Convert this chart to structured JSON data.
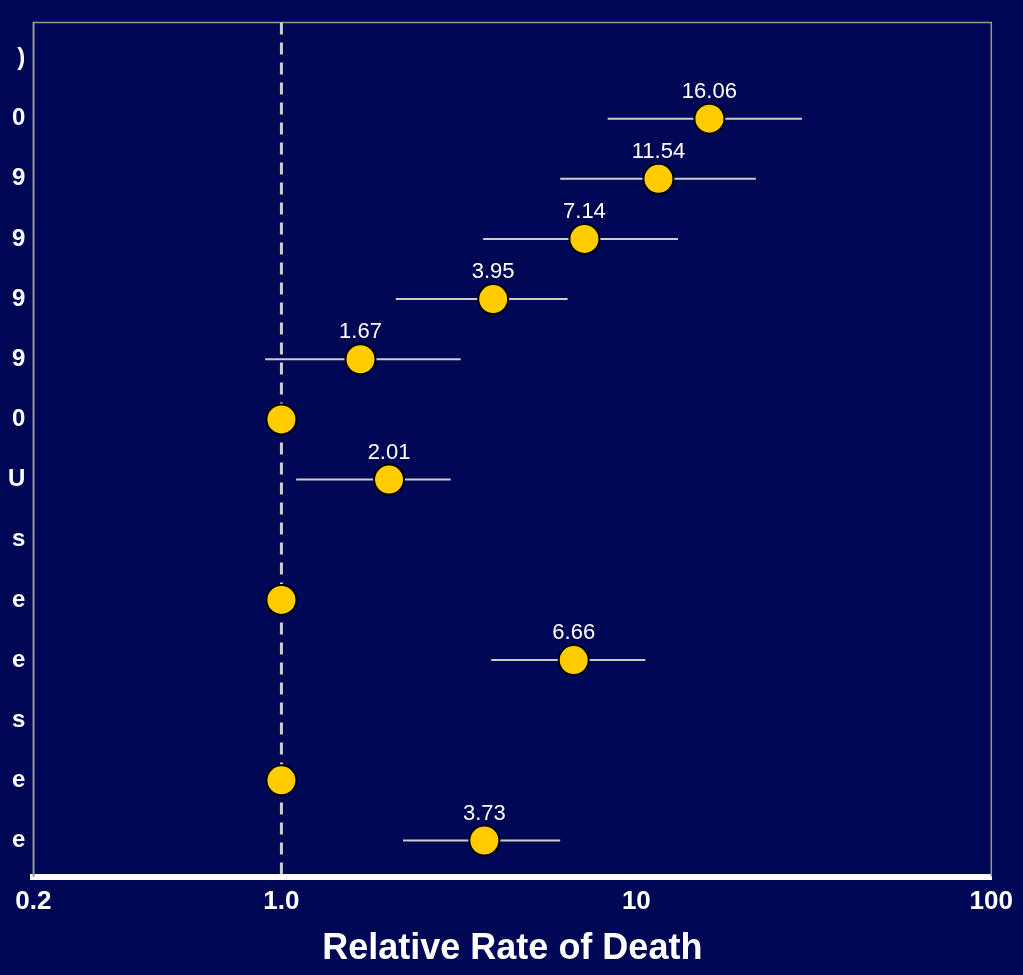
{
  "chart_data": {
    "type": "scatter",
    "orientation": "horizontal",
    "xlabel": "Relative Rate of Death",
    "categories": [
      ")",
      "0",
      "9",
      "9",
      "9",
      "9",
      "0",
      "U",
      "s",
      "e",
      "e",
      "s",
      "e",
      "e"
    ],
    "values": [
      null,
      16.06,
      11.54,
      7.14,
      3.95,
      1.67,
      1,
      2.01,
      null,
      1,
      6.66,
      null,
      1,
      3.73
    ],
    "errors": [
      null,
      [
        8.3,
        29.3
      ],
      [
        6.1,
        21.7
      ],
      [
        3.7,
        13.1
      ],
      [
        2.1,
        6.4
      ],
      [
        0.9,
        3.2
      ],
      null,
      [
        1.1,
        3.0
      ],
      null,
      null,
      [
        3.9,
        10.6
      ],
      null,
      null,
      [
        2.2,
        6.1
      ]
    ],
    "value_labels": [
      null,
      "16.06",
      "11.54",
      "7.14",
      "3.95",
      "1.67",
      null,
      "2.01",
      null,
      null,
      "6.66",
      null,
      null,
      "3.73"
    ],
    "color": "#ffcc00",
    "marker": "circle",
    "log": "x",
    "xlim": [
      0.2,
      100
    ],
    "xticks": [
      0.2,
      {
        "value": 1,
        "label": "1.0"
      },
      10,
      100
    ],
    "ref_lines": [
      {
        "axis": "x",
        "value": 1,
        "color": "#cccccc",
        "line_style": "dashed"
      }
    ]
  }
}
